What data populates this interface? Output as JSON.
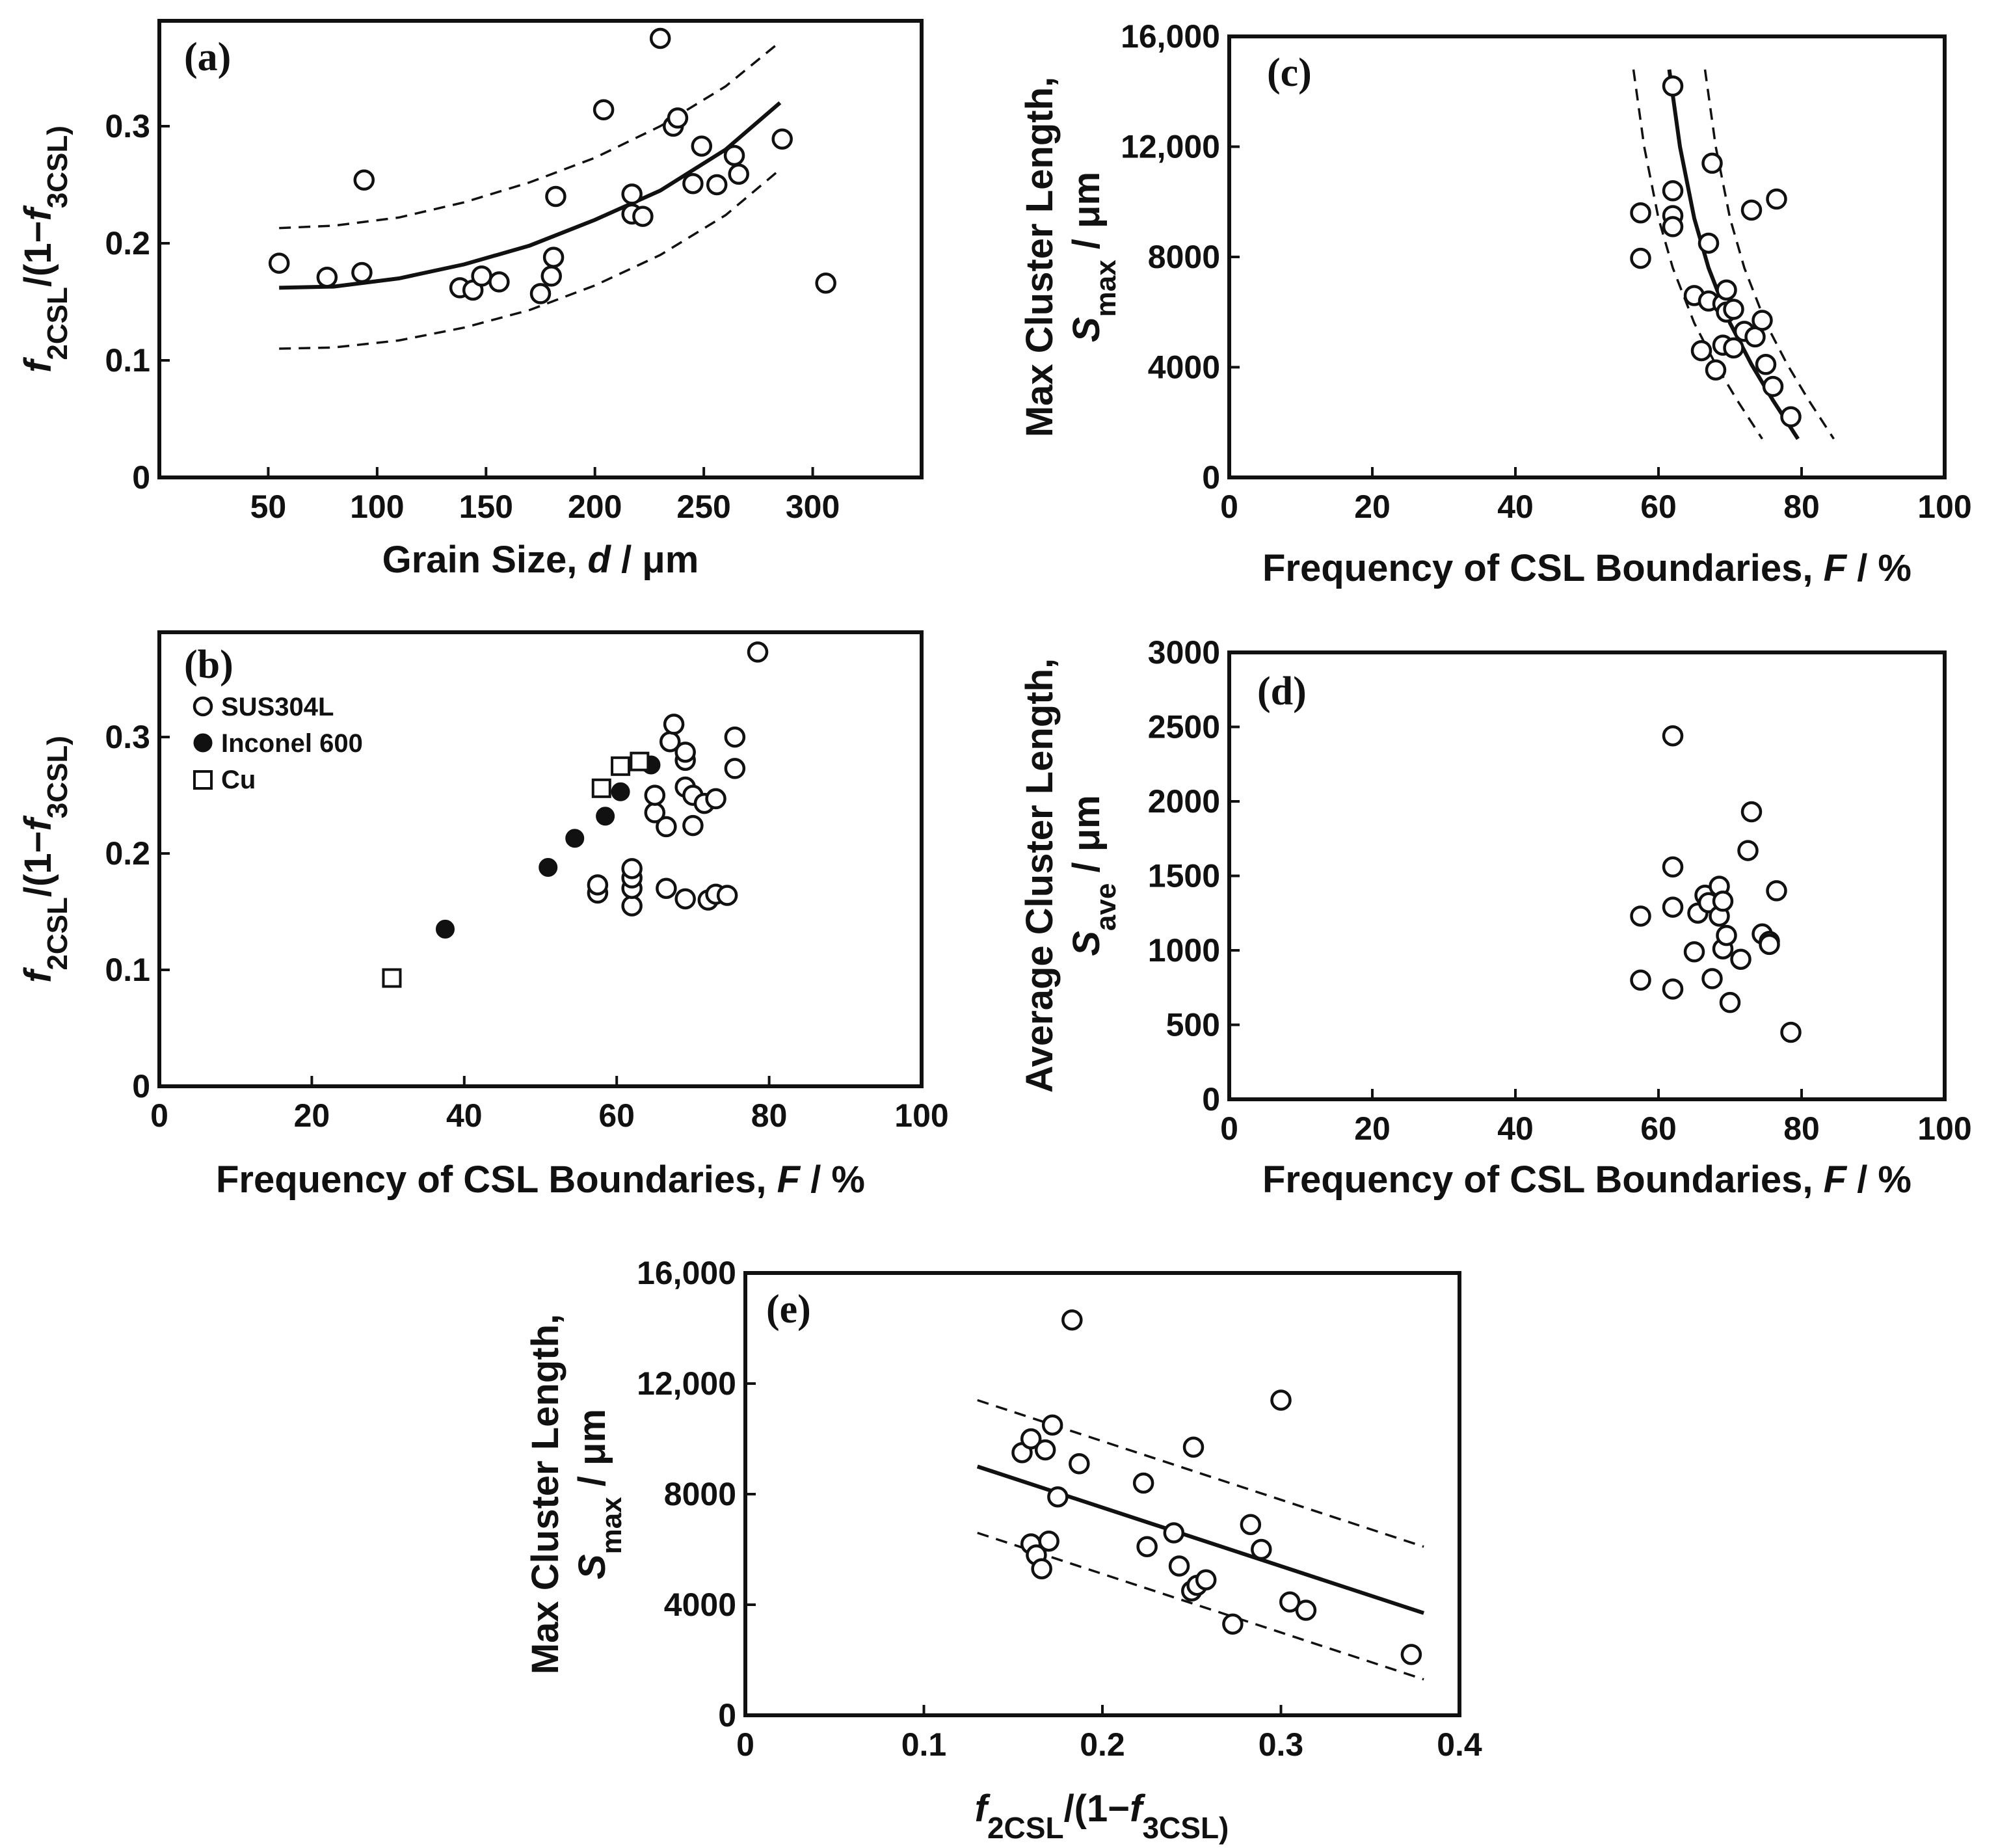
{
  "chart_data": [
    {
      "id": "a",
      "type": "scatter",
      "panel_label": "(a)",
      "xlabel": {
        "pre": "Grain Size, ",
        "ital": "d",
        "post": " / μm"
      },
      "ylabel": {
        "f2": "f",
        "sub2": "2CSL",
        "mid": "/(1−",
        "f3": "f",
        "sub3": "3CSL)"
      },
      "xlim": [
        0,
        350
      ],
      "ylim": [
        0,
        0.39
      ],
      "xticks": [
        50,
        100,
        150,
        200,
        250,
        300
      ],
      "xtick_labels": [
        "50",
        "100",
        "150",
        "200",
        "250",
        "300"
      ],
      "yticks": [
        0,
        0.1,
        0.2,
        0.3
      ],
      "ytick_labels": [
        "0",
        "0.1",
        "0.2",
        "0.3"
      ],
      "series": [
        {
          "name": "data",
          "marker": "open-circle",
          "points": [
            [
              55,
              0.183
            ],
            [
              77,
              0.171
            ],
            [
              93,
              0.175
            ],
            [
              94,
              0.254
            ],
            [
              138,
              0.162
            ],
            [
              144,
              0.16
            ],
            [
              148,
              0.172
            ],
            [
              156,
              0.167
            ],
            [
              175,
              0.157
            ],
            [
              180,
              0.172
            ],
            [
              181,
              0.188
            ],
            [
              182,
              0.24
            ],
            [
              204,
              0.314
            ],
            [
              217,
              0.242
            ],
            [
              217,
              0.225
            ],
            [
              222,
              0.223
            ],
            [
              230,
              0.375
            ],
            [
              236,
              0.3
            ],
            [
              238,
              0.307
            ],
            [
              245,
              0.251
            ],
            [
              249,
              0.283
            ],
            [
              256,
              0.25
            ],
            [
              264,
              0.275
            ],
            [
              266,
              0.259
            ],
            [
              286,
              0.289
            ],
            [
              306,
              0.166
            ]
          ]
        }
      ],
      "fit": {
        "points": [
          [
            55,
            0.162
          ],
          [
            80,
            0.163
          ],
          [
            110,
            0.17
          ],
          [
            140,
            0.182
          ],
          [
            170,
            0.198
          ],
          [
            200,
            0.22
          ],
          [
            230,
            0.245
          ],
          [
            260,
            0.28
          ],
          [
            285,
            0.32
          ]
        ]
      },
      "band_upper": {
        "points": [
          [
            55,
            0.213
          ],
          [
            80,
            0.215
          ],
          [
            110,
            0.222
          ],
          [
            140,
            0.235
          ],
          [
            170,
            0.252
          ],
          [
            200,
            0.273
          ],
          [
            230,
            0.3
          ],
          [
            260,
            0.334
          ],
          [
            285,
            0.372
          ]
        ]
      },
      "band_lower": {
        "points": [
          [
            55,
            0.11
          ],
          [
            80,
            0.111
          ],
          [
            110,
            0.117
          ],
          [
            140,
            0.128
          ],
          [
            170,
            0.143
          ],
          [
            200,
            0.164
          ],
          [
            230,
            0.19
          ],
          [
            260,
            0.224
          ],
          [
            285,
            0.263
          ]
        ]
      }
    },
    {
      "id": "b",
      "type": "scatter",
      "panel_label": "(b)",
      "xlabel": {
        "pre": "Frequency of CSL Boundaries, ",
        "ital": "F",
        "post": " / %"
      },
      "ylabel": {
        "f2": "f",
        "sub2": "2CSL",
        "mid": "/(1−",
        "f3": "f",
        "sub3": "3CSL)"
      },
      "xlim": [
        0,
        100
      ],
      "ylim": [
        0,
        0.39
      ],
      "xticks": [
        0,
        20,
        40,
        60,
        80,
        100
      ],
      "xtick_labels": [
        "0",
        "20",
        "40",
        "60",
        "80",
        "100"
      ],
      "yticks": [
        0,
        0.1,
        0.2,
        0.3
      ],
      "ytick_labels": [
        "0",
        "0.1",
        "0.2",
        "0.3"
      ],
      "legend": [
        {
          "marker": "open-circle",
          "label": "SUS304L"
        },
        {
          "marker": "filled-circle",
          "label": "Inconel 600"
        },
        {
          "marker": "open-square",
          "label": "Cu"
        }
      ],
      "series": [
        {
          "name": "SUS304L",
          "marker": "open-circle",
          "points": [
            [
              57.5,
              0.166
            ],
            [
              57.5,
              0.173
            ],
            [
              62,
              0.155
            ],
            [
              62,
              0.17
            ],
            [
              62,
              0.179
            ],
            [
              62,
              0.187
            ],
            [
              65,
              0.235
            ],
            [
              65,
              0.25
            ],
            [
              66.5,
              0.17
            ],
            [
              66.5,
              0.223
            ],
            [
              67,
              0.296
            ],
            [
              67.5,
              0.311
            ],
            [
              69,
              0.161
            ],
            [
              69,
              0.257
            ],
            [
              69,
              0.28
            ],
            [
              69,
              0.287
            ],
            [
              70,
              0.224
            ],
            [
              70,
              0.25
            ],
            [
              71.5,
              0.243
            ],
            [
              72,
              0.16
            ],
            [
              73,
              0.165
            ],
            [
              73,
              0.247
            ],
            [
              74.5,
              0.164
            ],
            [
              75.5,
              0.273
            ],
            [
              75.5,
              0.3
            ],
            [
              78.5,
              0.373
            ]
          ]
        },
        {
          "name": "Inconel 600",
          "marker": "filled-circle",
          "points": [
            [
              37.5,
              0.135
            ],
            [
              51,
              0.188
            ],
            [
              54.5,
              0.213
            ],
            [
              58.5,
              0.232
            ],
            [
              60.5,
              0.253
            ],
            [
              64.5,
              0.276
            ]
          ]
        },
        {
          "name": "Cu",
          "marker": "open-square",
          "points": [
            [
              30.5,
              0.093
            ],
            [
              58,
              0.256
            ],
            [
              60.5,
              0.275
            ],
            [
              63,
              0.279
            ]
          ]
        }
      ]
    },
    {
      "id": "c",
      "type": "scatter",
      "panel_label": "(c)",
      "xlabel": {
        "pre": "Frequency of CSL Boundaries, ",
        "ital": "F",
        "post": " / %"
      },
      "ylabel": {
        "line1": "Max Cluster Length,",
        "sym": "S",
        "sub": "max",
        "unit": " / μm"
      },
      "xlim": [
        0,
        100
      ],
      "ylim": [
        0,
        16000
      ],
      "xticks": [
        0,
        20,
        40,
        60,
        80,
        100
      ],
      "xtick_labels": [
        "0",
        "20",
        "40",
        "60",
        "80",
        "100"
      ],
      "yticks": [
        0,
        4000,
        8000,
        12000,
        16000
      ],
      "ytick_labels": [
        "0",
        "4000",
        "8000",
        "12,000",
        "16,000"
      ],
      "series": [
        {
          "name": "data",
          "marker": "open-circle",
          "points": [
            [
              57.5,
              9600
            ],
            [
              57.5,
              7950
            ],
            [
              62,
              14200
            ],
            [
              62,
              10400
            ],
            [
              62,
              9500
            ],
            [
              62,
              9100
            ],
            [
              65,
              6600
            ],
            [
              66,
              4600
            ],
            [
              67,
              6400
            ],
            [
              67,
              8500
            ],
            [
              67.5,
              11400
            ],
            [
              68,
              3900
            ],
            [
              69,
              6300
            ],
            [
              69,
              4800
            ],
            [
              69.5,
              6000
            ],
            [
              69.5,
              6800
            ],
            [
              70.5,
              6100
            ],
            [
              70.5,
              4700
            ],
            [
              72,
              5300
            ],
            [
              73,
              9700
            ],
            [
              73.5,
              5100
            ],
            [
              74.5,
              5700
            ],
            [
              75,
              4100
            ],
            [
              76,
              3300
            ],
            [
              76.5,
              10100
            ],
            [
              78.5,
              2200
            ]
          ]
        }
      ],
      "fit": {
        "points": [
          [
            61.5,
            14800
          ],
          [
            63,
            12000
          ],
          [
            65,
            9400
          ],
          [
            67,
            7600
          ],
          [
            70,
            5600
          ],
          [
            73,
            4100
          ],
          [
            76,
            2800
          ],
          [
            79.5,
            1400
          ]
        ]
      },
      "band_upper": {
        "points": [
          [
            66.5,
            14800
          ],
          [
            68,
            12000
          ],
          [
            70,
            9400
          ],
          [
            72,
            7600
          ],
          [
            75,
            5600
          ],
          [
            78,
            4100
          ],
          [
            81,
            2800
          ],
          [
            84.5,
            1400
          ]
        ]
      },
      "band_lower": {
        "points": [
          [
            56.5,
            14800
          ],
          [
            58,
            12000
          ],
          [
            60,
            9400
          ],
          [
            62,
            7600
          ],
          [
            65,
            5600
          ],
          [
            68,
            4100
          ],
          [
            71,
            2800
          ],
          [
            74.5,
            1400
          ]
        ]
      }
    },
    {
      "id": "d",
      "type": "scatter",
      "panel_label": "(d)",
      "xlabel": {
        "pre": "Frequency of CSL Boundaries, ",
        "ital": "F",
        "post": " / %"
      },
      "ylabel": {
        "line1": "Average Cluster Length,",
        "sym": "S",
        "sub": "ave",
        "unit": " / μm"
      },
      "xlim": [
        0,
        100
      ],
      "ylim": [
        0,
        3000
      ],
      "xticks": [
        0,
        20,
        40,
        60,
        80,
        100
      ],
      "xtick_labels": [
        "0",
        "20",
        "40",
        "60",
        "80",
        "100"
      ],
      "yticks": [
        0,
        500,
        1000,
        1500,
        2000,
        2500,
        3000
      ],
      "ytick_labels": [
        "0",
        "500",
        "1000",
        "1500",
        "2000",
        "2500",
        "3000"
      ],
      "series": [
        {
          "name": "data",
          "marker": "open-circle",
          "points": [
            [
              57.5,
              1230
            ],
            [
              57.5,
              800
            ],
            [
              62,
              2440
            ],
            [
              62,
              1560
            ],
            [
              62,
              1290
            ],
            [
              62,
              740
            ],
            [
              65,
              990
            ],
            [
              65.5,
              1250
            ],
            [
              66.5,
              1370
            ],
            [
              67,
              1320
            ],
            [
              67.5,
              810
            ],
            [
              68.5,
              1430
            ],
            [
              68.5,
              1230
            ],
            [
              69,
              1330
            ],
            [
              69,
              1010
            ],
            [
              69.5,
              1100
            ],
            [
              70,
              650
            ],
            [
              71.5,
              940
            ],
            [
              72.5,
              1670
            ],
            [
              73,
              1930
            ],
            [
              74.5,
              1110
            ],
            [
              75.5,
              1060
            ],
            [
              75.5,
              1040
            ],
            [
              76.5,
              1400
            ],
            [
              78.5,
              450
            ]
          ]
        }
      ]
    },
    {
      "id": "e",
      "type": "scatter",
      "panel_label": "(e)",
      "xlabel": {
        "f2": "f",
        "sub2": "2CSL",
        "mid": "/(1−",
        "f3": "f",
        "sub3": "3CSL)"
      },
      "ylabel": {
        "line1": "Max Cluster Length,",
        "sym": "S",
        "sub": "max",
        "unit": " / μm"
      },
      "xlim": [
        0,
        0.4
      ],
      "ylim": [
        0,
        16000
      ],
      "xticks": [
        0,
        0.1,
        0.2,
        0.3,
        0.4
      ],
      "xtick_labels": [
        "0",
        "0.1",
        "0.2",
        "0.3",
        "0.4"
      ],
      "yticks": [
        0,
        4000,
        8000,
        12000,
        16000
      ],
      "ytick_labels": [
        "0",
        "4000",
        "8000",
        "12,000",
        "16,000"
      ],
      "series": [
        {
          "name": "data",
          "marker": "open-circle",
          "points": [
            [
              0.155,
              9500
            ],
            [
              0.16,
              10000
            ],
            [
              0.16,
              6200
            ],
            [
              0.163,
              5800
            ],
            [
              0.166,
              5300
            ],
            [
              0.168,
              9600
            ],
            [
              0.17,
              6300
            ],
            [
              0.172,
              10500
            ],
            [
              0.175,
              7900
            ],
            [
              0.183,
              14300
            ],
            [
              0.187,
              9100
            ],
            [
              0.223,
              8400
            ],
            [
              0.225,
              6100
            ],
            [
              0.24,
              6600
            ],
            [
              0.243,
              5400
            ],
            [
              0.25,
              4500
            ],
            [
              0.251,
              9700
            ],
            [
              0.253,
              4700
            ],
            [
              0.258,
              4900
            ],
            [
              0.273,
              3300
            ],
            [
              0.283,
              6900
            ],
            [
              0.289,
              6000
            ],
            [
              0.3,
              11400
            ],
            [
              0.305,
              4100
            ],
            [
              0.314,
              3800
            ],
            [
              0.373,
              2200
            ]
          ]
        }
      ],
      "fit": {
        "points": [
          [
            0.13,
            9000
          ],
          [
            0.38,
            3700
          ]
        ]
      },
      "band_upper": {
        "points": [
          [
            0.13,
            11400
          ],
          [
            0.38,
            6100
          ]
        ]
      },
      "band_lower": {
        "points": [
          [
            0.13,
            6600
          ],
          [
            0.38,
            1300
          ]
        ]
      }
    }
  ]
}
